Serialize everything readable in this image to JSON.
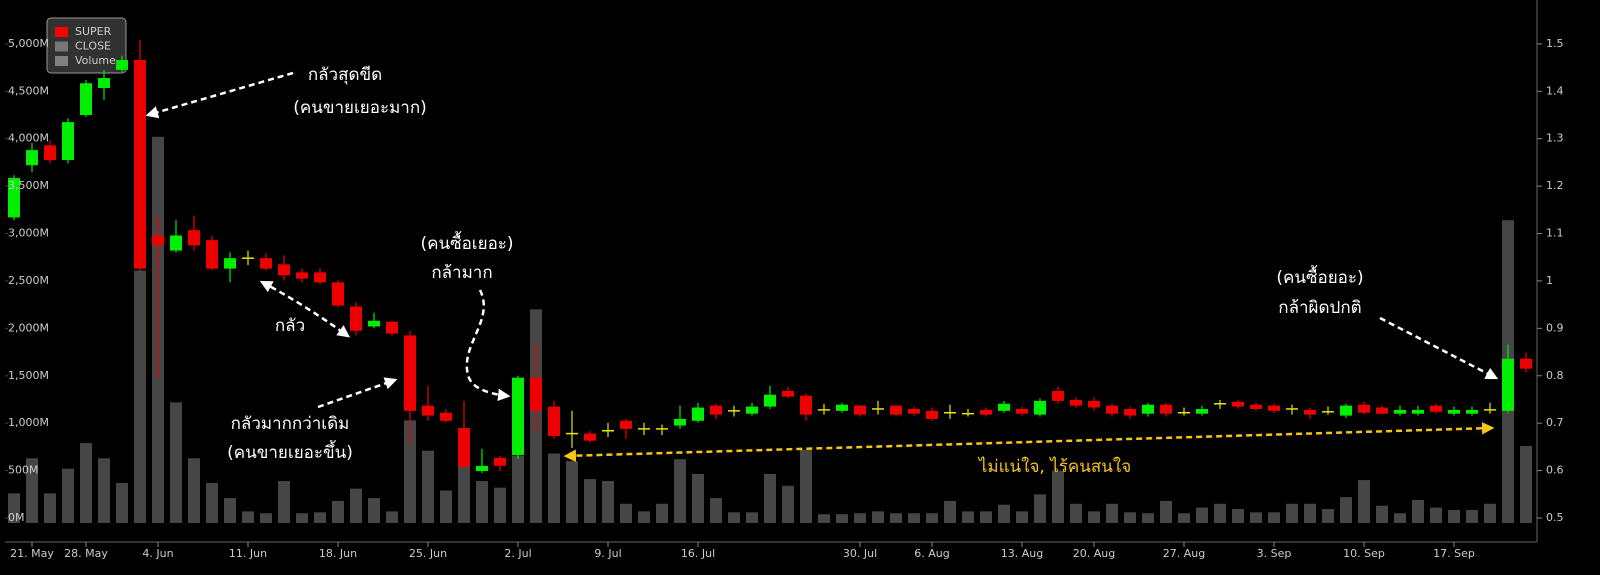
{
  "chart_data": {
    "type": "candlestick",
    "categories": [
      null,
      "21. May",
      null,
      null,
      "28. May",
      null,
      null,
      null,
      "4. Jun",
      null,
      null,
      null,
      null,
      "11. Jun",
      null,
      null,
      null,
      null,
      "18. Jun",
      null,
      null,
      null,
      null,
      "25. Jun",
      null,
      null,
      null,
      null,
      "2. Jul",
      null,
      null,
      null,
      null,
      "9. Jul",
      null,
      null,
      null,
      null,
      "16. Jul",
      null,
      null,
      null,
      null,
      null,
      null,
      null,
      null,
      "30. Jul",
      null,
      null,
      null,
      "6. Aug",
      null,
      null,
      null,
      null,
      "13. Aug",
      null,
      null,
      null,
      "20. Aug",
      null,
      null,
      null,
      null,
      "27. Aug",
      null,
      null,
      null,
      null,
      "3. Sep",
      null,
      null,
      null,
      null,
      "10. Sep",
      null,
      null,
      null,
      null,
      "17. Sep",
      null,
      null,
      null,
      null
    ],
    "series": [
      {
        "name": "SUPER",
        "type": "candlestick",
        "axis": "y2",
        "color": "#ff0000",
        "up_color": "#00ee00",
        "down_color": "#ee0000",
        "flat_color": "#e6e600",
        "open": [
          1.134,
          1.244,
          1.286,
          1.255,
          1.35,
          1.407,
          1.445,
          1.466,
          1.096,
          1.064,
          1.107,
          1.086,
          1.026,
          1.048,
          1.048,
          1.035,
          1.018,
          1.018,
          0.997,
          0.946,
          0.904,
          0.914,
          0.885,
          0.737,
          0.722,
          0.69,
          0.599,
          0.627,
          0.633,
          0.796,
          0.735,
          0.678,
          0.678,
          0.684,
          0.705,
          0.688,
          0.688,
          0.695,
          0.705,
          0.737,
          0.726,
          0.72,
          0.735,
          0.768,
          0.758,
          0.728,
          0.726,
          0.737,
          0.73,
          0.737,
          0.73,
          0.726,
          0.722,
          0.72,
          0.728,
          0.726,
          0.73,
          0.718,
          0.768,
          0.749,
          0.747,
          0.737,
          0.73,
          0.72,
          0.739,
          0.722,
          0.72,
          0.741,
          0.745,
          0.739,
          0.737,
          0.73,
          0.728,
          0.724,
          0.716,
          0.739,
          0.733,
          0.72,
          0.72,
          0.737,
          0.72,
          0.72,
          0.728,
          0.726,
          0.836
        ],
        "high": [
          1.223,
          1.291,
          1.297,
          1.343,
          1.424,
          1.445,
          1.475,
          1.508,
          1.138,
          1.128,
          1.138,
          1.096,
          1.06,
          1.064,
          1.058,
          1.054,
          1.026,
          1.026,
          1.001,
          0.955,
          0.933,
          0.916,
          0.895,
          0.779,
          0.73,
          0.747,
          0.646,
          0.631,
          0.8,
          0.868,
          0.747,
          0.726,
          0.684,
          0.701,
          0.709,
          0.701,
          0.697,
          0.737,
          0.743,
          0.741,
          0.737,
          0.743,
          0.779,
          0.777,
          0.762,
          0.741,
          0.743,
          0.739,
          0.747,
          0.739,
          0.735,
          0.733,
          0.739,
          0.73,
          0.733,
          0.747,
          0.735,
          0.752,
          0.777,
          0.754,
          0.754,
          0.741,
          0.735,
          0.743,
          0.743,
          0.733,
          0.737,
          0.749,
          0.749,
          0.743,
          0.741,
          0.739,
          0.733,
          0.735,
          0.741,
          0.745,
          0.737,
          0.737,
          0.737,
          0.741,
          0.735,
          0.735,
          0.743,
          0.866,
          0.849
        ],
        "low": [
          1.128,
          1.229,
          1.248,
          1.248,
          1.346,
          1.382,
          1.441,
          1.022,
          0.794,
          1.06,
          1.064,
          1.022,
          0.997,
          1.033,
          1.022,
          1.001,
          0.997,
          0.993,
          0.944,
          0.885,
          0.9,
          0.885,
          0.656,
          0.705,
          0.701,
          0.604,
          0.595,
          0.599,
          0.625,
          0.684,
          0.667,
          0.648,
          0.659,
          0.671,
          0.667,
          0.675,
          0.675,
          0.688,
          0.701,
          0.709,
          0.714,
          0.716,
          0.73,
          0.752,
          0.705,
          0.718,
          0.722,
          0.714,
          0.718,
          0.714,
          0.716,
          0.705,
          0.709,
          0.714,
          0.714,
          0.722,
          0.716,
          0.714,
          0.741,
          0.733,
          0.726,
          0.714,
          0.709,
          0.714,
          0.714,
          0.716,
          0.716,
          0.73,
          0.73,
          0.726,
          0.722,
          0.718,
          0.709,
          0.718,
          0.711,
          0.718,
          0.718,
          0.716,
          0.716,
          0.72,
          0.716,
          0.716,
          0.72,
          0.722,
          0.807
        ],
        "close": [
          1.217,
          1.276,
          1.255,
          1.335,
          1.417,
          1.428,
          1.466,
          1.026,
          1.075,
          1.096,
          1.075,
          1.026,
          1.048,
          1.048,
          1.026,
          1.012,
          1.005,
          0.997,
          0.948,
          0.895,
          0.916,
          0.889,
          0.726,
          0.716,
          0.705,
          0.608,
          0.61,
          0.61,
          0.796,
          0.726,
          0.673,
          0.678,
          0.663,
          0.684,
          0.688,
          0.688,
          0.688,
          0.709,
          0.733,
          0.718,
          0.726,
          0.735,
          0.76,
          0.756,
          0.718,
          0.728,
          0.739,
          0.718,
          0.73,
          0.718,
          0.72,
          0.709,
          0.722,
          0.72,
          0.718,
          0.741,
          0.72,
          0.747,
          0.747,
          0.737,
          0.733,
          0.72,
          0.716,
          0.739,
          0.72,
          0.722,
          0.73,
          0.741,
          0.735,
          0.73,
          0.726,
          0.73,
          0.718,
          0.724,
          0.737,
          0.722,
          0.72,
          0.728,
          0.728,
          0.724,
          0.728,
          0.728,
          0.728,
          0.836,
          0.815
        ]
      },
      {
        "name": "CLOSE",
        "color": "#777777"
      },
      {
        "name": "Volume",
        "type": "column",
        "axis": "y",
        "color": "#808080",
        "values": [
          260,
          630,
          260,
          520,
          790,
          630,
          370,
          2610,
          4020,
          1220,
          630,
          370,
          210,
          70,
          50,
          390,
          50,
          60,
          180,
          310,
          210,
          70,
          1030,
          710,
          290,
          940,
          390,
          320,
          660,
          2200,
          680,
          600,
          410,
          390,
          150,
          70,
          150,
          620,
          465,
          210,
          60,
          60,
          465,
          340,
          720,
          40,
          40,
          50,
          70,
          50,
          50,
          50,
          180,
          70,
          70,
          140,
          70,
          250,
          500,
          150,
          70,
          150,
          60,
          50,
          180,
          50,
          110,
          150,
          95,
          60,
          60,
          150,
          150,
          95,
          220,
          400,
          130,
          50,
          190,
          110,
          85,
          85,
          150,
          3140,
          760
        ]
      }
    ],
    "ylim": [
      0,
      5410
    ],
    "yticks": [
      {
        "value": 0,
        "label": "0M"
      },
      {
        "value": 500,
        "label": "500M"
      },
      {
        "value": 1000,
        "label": "1,000M"
      },
      {
        "value": 1500,
        "label": "1,500M"
      },
      {
        "value": 2000,
        "label": "2,000M"
      },
      {
        "value": 2500,
        "label": "2,500M"
      },
      {
        "value": 3000,
        "label": "3,000M"
      },
      {
        "value": 3500,
        "label": "3,500M"
      },
      {
        "value": 4000,
        "label": "4,000M"
      },
      {
        "value": 4500,
        "label": "4,500M"
      },
      {
        "value": 5000,
        "label": "5,000M"
      }
    ],
    "y2lim": [
      0.5,
      1.582
    ],
    "y2ticks": [
      0.5,
      0.6,
      0.7,
      0.8,
      0.9,
      1,
      1.1,
      1.2,
      1.3,
      1.4,
      1.5
    ],
    "grid": false,
    "legend": "top-left",
    "annotations": [
      {
        "text": "กลัวสุดขีด",
        "color": "#ffffff"
      },
      {
        "text": "(คนขายเยอะมาก)",
        "color": "#ffffff"
      },
      {
        "text": "กลัว",
        "color": "#ffffff"
      },
      {
        "text": "กลัวมากกว่าเดิม",
        "color": "#ffffff"
      },
      {
        "text": "(คนขายเยอะขึ้น)",
        "color": "#ffffff"
      },
      {
        "text": "(คนซื้อเยอะ)",
        "color": "#ffffff"
      },
      {
        "text": "กล้ามาก",
        "color": "#ffffff"
      },
      {
        "text": "(คนซื้อยอะ)",
        "color": "#ffffff"
      },
      {
        "text": "กล้าผิดปกติ",
        "color": "#ffffff"
      },
      {
        "text": "ไม่แน่ใจ, ไร้คนสนใจ",
        "color": "#f5c518"
      }
    ]
  }
}
